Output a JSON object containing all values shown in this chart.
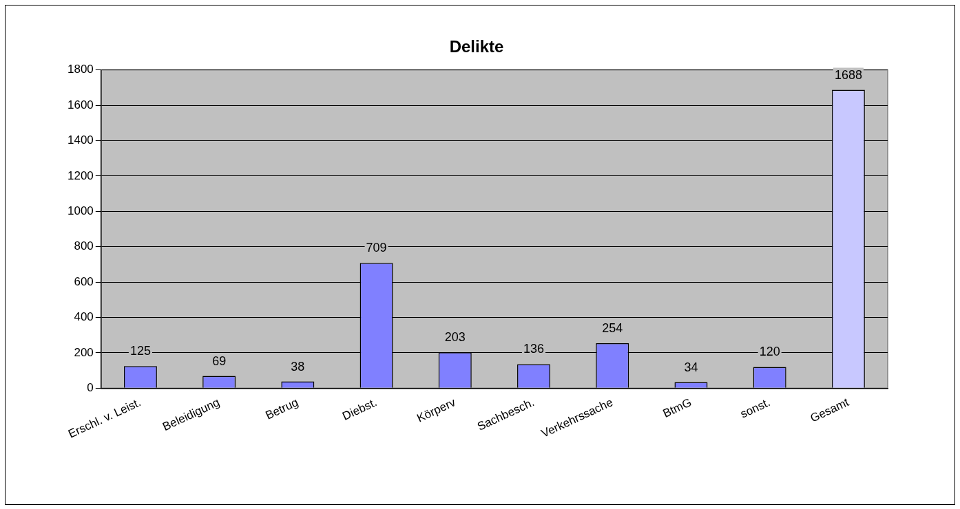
{
  "chart_data": {
    "type": "bar",
    "title": "Delikte",
    "categories": [
      "Erschl. v. Leist.",
      "Beleidigung",
      "Betrug",
      "Diebst.",
      "Körperv",
      "Sachbesch.",
      "Verkehrssache",
      "BtmG",
      "sonst.",
      "Gesamt"
    ],
    "values": [
      125,
      69,
      38,
      709,
      203,
      136,
      254,
      34,
      120,
      1688
    ],
    "colors": [
      "#8080ff",
      "#8080ff",
      "#8080ff",
      "#8080ff",
      "#8080ff",
      "#8080ff",
      "#8080ff",
      "#8080ff",
      "#8080ff",
      "#c8c8ff"
    ],
    "ylim": [
      0,
      1800
    ],
    "yticks": [
      0,
      200,
      400,
      600,
      800,
      1000,
      1200,
      1400,
      1600,
      1800
    ],
    "grid": "y",
    "data_labels": true,
    "legend": false
  }
}
